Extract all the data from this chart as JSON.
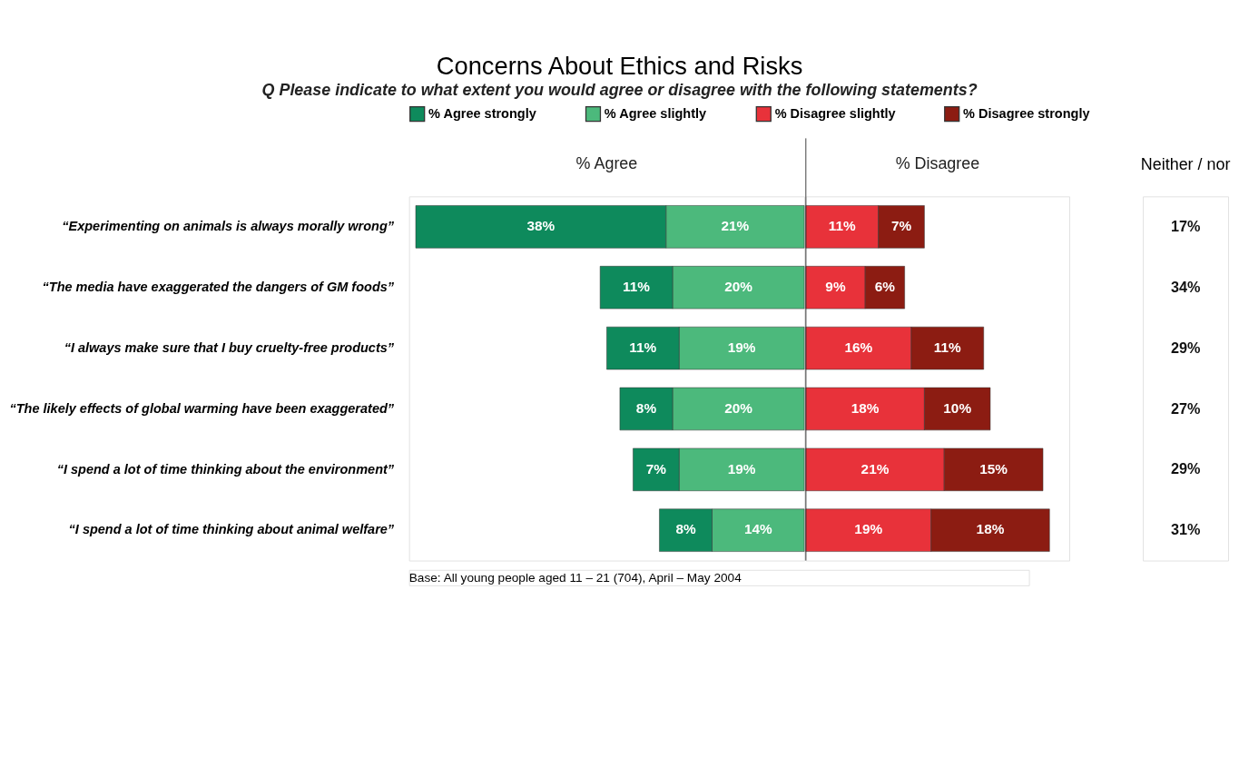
{
  "chart_data": [
    {
      "type": "bar",
      "orientation": "horizontal",
      "stacked": true,
      "title": "Concerns About Ethics and Risks",
      "subtitle": "Q   Please indicate to what extent you would agree or disagree with the following statements?",
      "categories": [
        "“Experimenting on animals is always morally wrong”",
        "“The media have exaggerated the dangers of GM foods”",
        "“I always make sure that I buy cruelty-free products”",
        "“The likely effects of global warming have been exaggerated”",
        "“I spend a lot of time thinking about the environment”",
        "“I spend a lot of time thinking about animal welfare”"
      ],
      "xlim": [
        60,
        0
      ],
      "series": [
        {
          "name": "% Agree slightly",
          "color": "#4cb97c",
          "values": [
            21,
            20,
            19,
            20,
            19,
            14
          ],
          "value_labels": [
            "21%",
            "20%",
            "19%",
            "20%",
            "19%",
            "14%"
          ]
        },
        {
          "name": "% Agree strongly",
          "color": "#0e8a5c",
          "values": [
            38,
            11,
            11,
            8,
            7,
            8
          ],
          "value_labels": [
            "38%",
            "11%",
            "11%",
            "8%",
            "7%",
            "8%"
          ]
        }
      ],
      "annotations": [
        "% Agree",
        "Base: All young people aged 11 – 21 (704), April – May 2004"
      ],
      "legend": "top",
      "grid": false,
      "tick_labels": "y"
    },
    {
      "type": "bar",
      "orientation": "horizontal",
      "stacked": true,
      "categories": [
        null,
        null,
        null,
        null,
        null,
        null
      ],
      "xlim": [
        0,
        40
      ],
      "series": [
        {
          "name": "% Disagree slightly",
          "color": "#e8323a",
          "values": [
            11,
            9,
            16,
            18,
            21,
            19
          ],
          "value_labels": [
            "11%",
            "9%",
            "16%",
            "18%",
            "21%",
            "19%"
          ]
        },
        {
          "name": "% Disagree strongly",
          "color": "#8c1c12",
          "values": [
            7,
            6,
            11,
            10,
            15,
            18
          ],
          "value_labels": [
            "7%",
            "6%",
            "11%",
            "10%",
            "15%",
            "18%"
          ]
        }
      ],
      "annotations": [
        "% Disagree"
      ],
      "legend": "top",
      "grid": false,
      "tick_labels": false
    },
    {
      "type": "other",
      "title": "Neither / nor",
      "value_labels": [
        "17%",
        "34%",
        "29%",
        "27%",
        "29%",
        "31%"
      ]
    }
  ]
}
